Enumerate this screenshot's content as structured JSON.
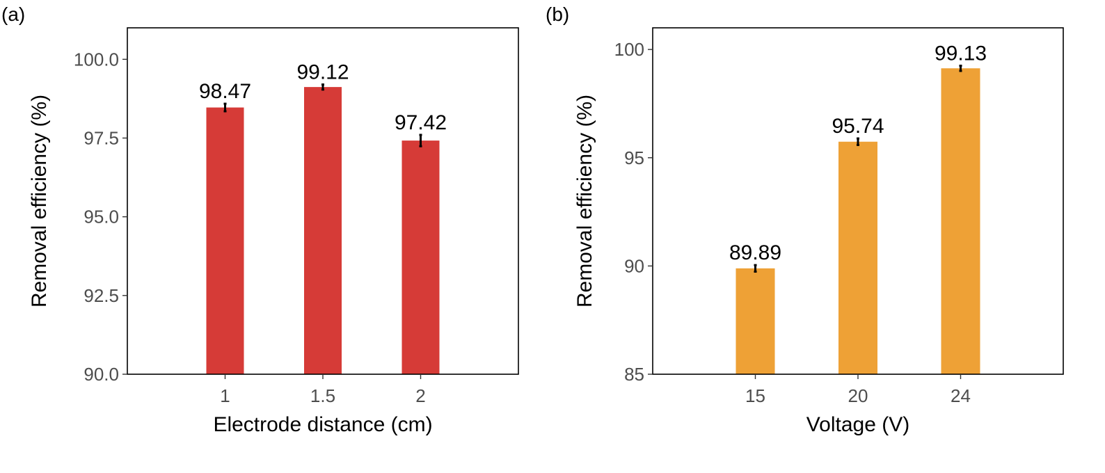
{
  "chart_data": [
    {
      "panel_label": "(a)",
      "type": "bar",
      "categories": [
        "1",
        "1.5",
        "2"
      ],
      "values": [
        98.47,
        99.12,
        97.42
      ],
      "errors": [
        0.12,
        0.08,
        0.18
      ],
      "data_labels": [
        "98.47",
        "99.12",
        "97.42"
      ],
      "xlabel": "Electrode distance (cm)",
      "ylabel": "Removal efficiency (%)",
      "ylim": [
        90,
        101
      ],
      "yticks": [
        90,
        92.5,
        95,
        97.5,
        100
      ],
      "ytick_labels": [
        "90.0",
        "92.5",
        "95.0",
        "97.5",
        "100.0"
      ],
      "bar_color": "#d63b37",
      "grid": false
    },
    {
      "panel_label": "(b)",
      "type": "bar",
      "categories": [
        "15",
        "20",
        "24"
      ],
      "values": [
        89.89,
        95.74,
        99.13
      ],
      "errors": [
        0.15,
        0.15,
        0.12
      ],
      "data_labels": [
        "89.89",
        "95.74",
        "99.13"
      ],
      "xlabel": "Voltage (V)",
      "ylabel": "Removal efficiency (%)",
      "ylim": [
        85,
        101
      ],
      "yticks": [
        85,
        90,
        95,
        100
      ],
      "ytick_labels": [
        "85",
        "90",
        "95",
        "100"
      ],
      "bar_color": "#eea136",
      "grid": false
    }
  ]
}
